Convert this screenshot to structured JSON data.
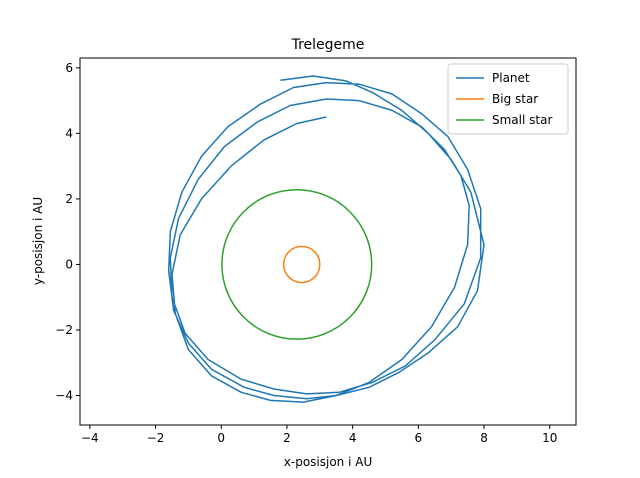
{
  "chart_data": {
    "type": "line",
    "title": "Trelegeme",
    "xlabel": "x-posisjon i AU",
    "ylabel": "y-posisjon i AU",
    "xlim": [
      -4.3,
      10.8
    ],
    "ylim": [
      -4.9,
      6.3
    ],
    "xticks": [
      -4,
      -2,
      0,
      2,
      4,
      6,
      8,
      10
    ],
    "yticks": [
      -4,
      -2,
      0,
      2,
      4,
      6
    ],
    "grid": false,
    "legend_position": "top-right",
    "series": [
      {
        "name": "Planet",
        "color": "#1f77b4",
        "x": [
          1.8,
          2.8,
          3.8,
          4.6,
          5.5,
          6.3,
          7.0,
          7.6,
          8.0,
          7.8,
          7.2,
          6.3,
          5.4,
          4.5,
          3.5,
          2.6,
          1.6,
          0.7,
          -0.3,
          -1.0,
          -1.45,
          -1.6,
          -1.55,
          -1.2,
          -0.6,
          0.2,
          1.2,
          2.2,
          3.2,
          4.2,
          5.2,
          6.1,
          6.9,
          7.5,
          7.9,
          7.9,
          7.4,
          6.5,
          5.6,
          4.6,
          3.6,
          2.6,
          1.6,
          0.6,
          -0.4,
          -1.1,
          -1.5,
          -1.55,
          -1.3,
          -0.7,
          0.1,
          1.1,
          2.1,
          3.2,
          4.2,
          5.2,
          6.1,
          6.8,
          7.3,
          7.55,
          7.5,
          7.1,
          6.4,
          5.5,
          4.5,
          3.5,
          2.5,
          1.5,
          0.6,
          -0.3,
          -1.0,
          -1.4,
          -1.5,
          -1.25,
          -0.6,
          0.3,
          1.3,
          2.3,
          3.2
        ],
        "y": [
          5.62,
          5.75,
          5.6,
          5.25,
          4.7,
          4.0,
          3.2,
          2.2,
          0.6,
          -0.8,
          -1.9,
          -2.7,
          -3.3,
          -3.75,
          -4.0,
          -4.1,
          -4.0,
          -3.75,
          -3.2,
          -2.4,
          -1.4,
          -0.2,
          1.0,
          2.2,
          3.3,
          4.2,
          4.9,
          5.4,
          5.55,
          5.5,
          5.2,
          4.6,
          3.9,
          2.9,
          1.7,
          0.2,
          -1.2,
          -2.3,
          -3.1,
          -3.6,
          -3.9,
          -3.95,
          -3.8,
          -3.5,
          -2.9,
          -2.1,
          -1.0,
          0.2,
          1.4,
          2.6,
          3.6,
          4.35,
          4.85,
          5.05,
          5.0,
          4.7,
          4.2,
          3.5,
          2.7,
          1.8,
          0.6,
          -0.7,
          -1.9,
          -2.9,
          -3.6,
          -4.0,
          -4.2,
          -4.15,
          -3.9,
          -3.4,
          -2.6,
          -1.5,
          -0.3,
          0.9,
          2.0,
          3.0,
          3.8,
          4.3,
          4.5
        ]
      },
      {
        "name": "Big star",
        "color": "#ff7f0e",
        "center": [
          2.45,
          0.0
        ],
        "radius": 0.55
      },
      {
        "name": "Small star",
        "color": "#2ca02c",
        "center": [
          2.3,
          0.0
        ],
        "radius": 2.28
      }
    ]
  }
}
